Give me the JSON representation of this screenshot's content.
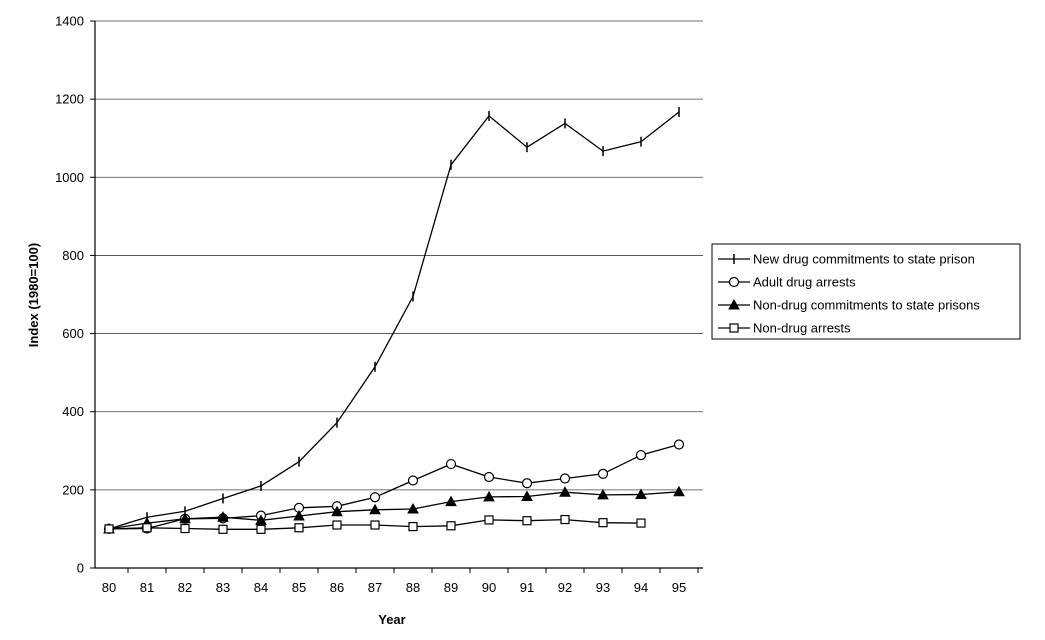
{
  "chart_data": {
    "type": "line",
    "xlabel": "Year",
    "ylabel": "Index (1980=100)",
    "ylim": [
      0,
      1400
    ],
    "yticks": [
      0,
      200,
      400,
      600,
      800,
      1000,
      1200,
      1400
    ],
    "categories": [
      "80",
      "81",
      "82",
      "83",
      "84",
      "85",
      "86",
      "87",
      "88",
      "89",
      "90",
      "91",
      "92",
      "93",
      "94",
      "95"
    ],
    "grid": "horizontal",
    "legend_position": "right",
    "series": [
      {
        "name": "New drug commitments to state prison",
        "marker": "plus",
        "fill": "none",
        "values": [
          100,
          130,
          145,
          178,
          210,
          272,
          372,
          515,
          695,
          1032,
          1157,
          1077,
          1138,
          1067,
          1091,
          1167
        ]
      },
      {
        "name": "Adult drug arrests",
        "marker": "circle",
        "fill": "#ffffff",
        "values": [
          100,
          101,
          126,
          127,
          134,
          154,
          158,
          181,
          224,
          266,
          233,
          217,
          229,
          241,
          289,
          316
        ]
      },
      {
        "name": "Non-drug commitments to state prisons",
        "marker": "triangle",
        "fill": "#000000",
        "values": [
          100,
          115,
          126,
          130,
          122,
          133,
          144,
          149,
          151,
          170,
          182,
          183,
          194,
          187,
          188,
          195
        ]
      },
      {
        "name": "Non-drug arrests",
        "marker": "square",
        "fill": "#ffffff",
        "values": [
          100,
          103,
          101,
          99,
          99,
          103,
          110,
          110,
          106,
          108,
          123,
          121,
          124,
          116,
          115,
          null
        ]
      }
    ]
  }
}
